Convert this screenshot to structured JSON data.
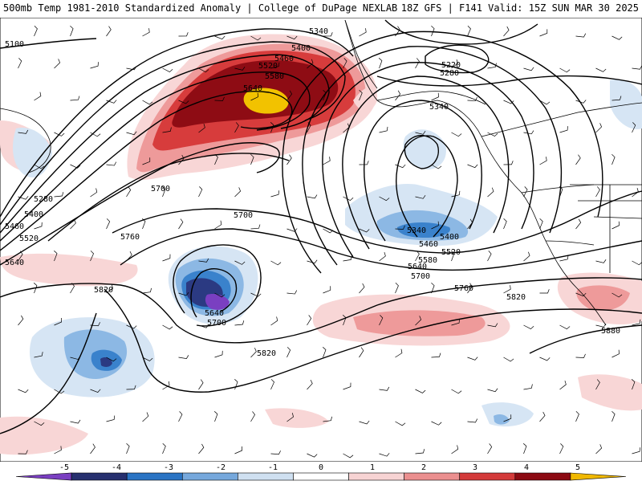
{
  "header": {
    "title_left": "500mb Temp 1981-2010 Standardized Anomaly | College of DuPage NEXLAB",
    "title_right": "18Z GFS | F141 Valid: 15Z SUN MAR 30 2025"
  },
  "contour_labels": [
    "5100",
    "5340",
    "5400",
    "5460",
    "5520",
    "5580",
    "5640",
    "5220",
    "5280",
    "5340",
    "5700",
    "5280",
    "5400",
    "5460",
    "5520",
    "5640",
    "5760",
    "5700",
    "5340",
    "5400",
    "5460",
    "5520",
    "5580",
    "5640",
    "5700",
    "5760",
    "5820",
    "5820",
    "5640",
    "5700",
    "5820",
    "5880"
  ],
  "colorbar": {
    "tick_labels": [
      "-5",
      "-4",
      "-3",
      "-2",
      "-1",
      "0",
      "1",
      "2",
      "3",
      "4",
      "5"
    ],
    "colors": [
      "#7a3fc1",
      "#27306f",
      "#2a74c4",
      "#76a8dc",
      "#cfe0f1",
      "#ffffff",
      "#f7d3d3",
      "#eb8f8f",
      "#d33a3a",
      "#8c0a12",
      "#f0b800"
    ]
  },
  "colors": {
    "neg5": "#7a3fc1",
    "neg4": "#2b3a82",
    "neg3": "#3a82cc",
    "neg2": "#8cb8e4",
    "neg1": "#d6e5f4",
    "pos1": "#f8d6d6",
    "pos2": "#ee9a9a",
    "pos3": "#d73c3c",
    "pos4": "#8e0c14",
    "pos5": "#f2c200",
    "contour": "#000000",
    "coast": "#000000"
  }
}
